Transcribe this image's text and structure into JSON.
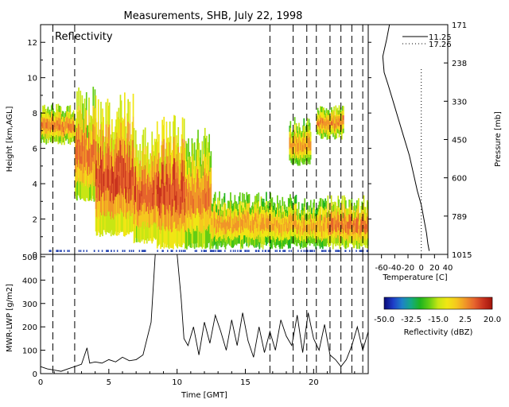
{
  "title": "Measurements, SHB, July 22, 1998",
  "colors": {
    "background": "#ffffff",
    "axes": "#000000",
    "ground_clutter": "#1f3fb0",
    "colormap": [
      "#0a0a78",
      "#1e3cc8",
      "#1e82c8",
      "#14aa82",
      "#1eb41e",
      "#64cd14",
      "#c8e614",
      "#f0e614",
      "#f5c81e",
      "#f09628",
      "#e6642d",
      "#c8321e",
      "#a0140a"
    ]
  },
  "chart_data": [
    {
      "id": "reflectivity",
      "type": "heatmap",
      "title": "Reflectivity",
      "xlabel": "",
      "ylabel": "Height [km,AGL]",
      "xlim": [
        0,
        24
      ],
      "ylim": [
        0,
        13
      ],
      "yticks": [
        0,
        2,
        4,
        6,
        8,
        10,
        12
      ],
      "grid": false,
      "dashed_time_markers": [
        0.9,
        2.5,
        16.8,
        18.5,
        19.5,
        20.2,
        21.2,
        22.0,
        22.8,
        23.6
      ],
      "echo_layers": [
        {
          "t_start": 0.0,
          "t_end": 2.5,
          "base_km": 6.2,
          "top_km": 8.6,
          "dbz": 8
        },
        {
          "t_start": 2.5,
          "t_end": 4.0,
          "base_km": 3.0,
          "top_km": 9.5,
          "dbz": 10
        },
        {
          "t_start": 4.0,
          "t_end": 6.8,
          "base_km": 1.0,
          "top_km": 9.2,
          "dbz": 14
        },
        {
          "t_start": 6.8,
          "t_end": 8.5,
          "base_km": 0.6,
          "top_km": 7.2,
          "dbz": 12
        },
        {
          "t_start": 8.5,
          "t_end": 10.6,
          "base_km": 0.3,
          "top_km": 8.0,
          "dbz": 15
        },
        {
          "t_start": 10.6,
          "t_end": 12.5,
          "base_km": 0.3,
          "top_km": 7.5,
          "dbz": 8
        },
        {
          "t_start": 12.5,
          "t_end": 16.8,
          "base_km": 0.3,
          "top_km": 3.6,
          "dbz": 5
        },
        {
          "t_start": 16.8,
          "t_end": 18.8,
          "base_km": 0.3,
          "top_km": 3.5,
          "dbz": 4
        },
        {
          "t_start": 18.2,
          "t_end": 19.8,
          "base_km": 5.0,
          "top_km": 7.8,
          "dbz": 6
        },
        {
          "t_start": 18.8,
          "t_end": 21.0,
          "base_km": 0.3,
          "top_km": 3.2,
          "dbz": 4
        },
        {
          "t_start": 20.2,
          "t_end": 22.2,
          "base_km": 6.5,
          "top_km": 8.5,
          "dbz": 7
        },
        {
          "t_start": 21.0,
          "t_end": 24.0,
          "base_km": 0.3,
          "top_km": 3.4,
          "dbz": 10
        }
      ]
    },
    {
      "id": "temperature-profile",
      "type": "line",
      "xlabel": "Temperature [C]",
      "ylabel": "Pressure [mb]",
      "xlim": [
        -80,
        40
      ],
      "xticks": [
        -60,
        -40,
        -20,
        0,
        20,
        40
      ],
      "ylim": [
        0,
        13
      ],
      "pressure_tick_labels": [
        "1015",
        "789",
        "600",
        "450",
        "330",
        "238",
        "171"
      ],
      "series": [
        {
          "name": "11.25",
          "style": "solid",
          "x": [
            12,
            10,
            8,
            4,
            0,
            -6,
            -12,
            -18,
            -26,
            -34,
            -42,
            -50,
            -56,
            -58,
            -52,
            -48
          ],
          "y": [
            0.2,
            0.6,
            1.2,
            2.0,
            2.8,
            3.6,
            4.6,
            5.6,
            6.6,
            7.6,
            8.6,
            9.6,
            10.3,
            11.2,
            12.2,
            13.0
          ]
        },
        {
          "name": "17.26",
          "style": "dotted",
          "x": [
            0,
            0
          ],
          "y": [
            0,
            10.5
          ]
        }
      ]
    },
    {
      "id": "mwr-lwp",
      "type": "line",
      "xlabel": "Time [GMT]",
      "ylabel": "MWR-LWP [g/m2]",
      "xlim": [
        0,
        24
      ],
      "xticks": [
        0,
        5,
        10,
        15,
        20
      ],
      "ylim": [
        0,
        510
      ],
      "yticks": [
        0,
        100,
        200,
        300,
        400,
        500
      ],
      "dashed_time_markers": [
        0.9,
        2.5,
        16.8,
        18.5,
        19.5,
        20.2,
        21.2,
        22.0,
        22.8,
        23.6
      ],
      "series": [
        {
          "name": "LWP",
          "x": [
            0,
            0.5,
            1.0,
            1.5,
            2.0,
            2.5,
            3.0,
            3.4,
            3.6,
            4.0,
            4.5,
            5.0,
            5.5,
            6.0,
            6.5,
            7.0,
            7.5,
            7.8,
            8.1,
            8.4,
            8.6,
            9.0,
            9.5,
            10.0,
            10.3,
            10.5,
            10.8,
            11.2,
            11.6,
            12.0,
            12.4,
            12.8,
            13.2,
            13.6,
            14.0,
            14.4,
            14.8,
            15.2,
            15.6,
            16.0,
            16.4,
            16.8,
            17.2,
            17.6,
            18.0,
            18.4,
            18.8,
            19.2,
            19.6,
            20.0,
            20.4,
            20.8,
            21.2,
            21.6,
            22.0,
            22.4,
            22.8,
            23.2,
            23.6,
            24.0
          ],
          "y": [
            30,
            20,
            15,
            10,
            20,
            30,
            40,
            110,
            45,
            50,
            45,
            60,
            50,
            70,
            55,
            60,
            80,
            150,
            220,
            510,
            510,
            510,
            510,
            510,
            320,
            150,
            120,
            200,
            80,
            220,
            130,
            250,
            180,
            100,
            230,
            120,
            260,
            140,
            70,
            200,
            90,
            180,
            100,
            230,
            160,
            120,
            250,
            90,
            260,
            150,
            100,
            210,
            80,
            60,
            30,
            60,
            120,
            200,
            100,
            180
          ]
        }
      ]
    },
    {
      "id": "reflectivity-colorbar",
      "type": "heatmap",
      "xlabel": "Reflectivity (dBZ)",
      "xlim": [
        -50,
        20
      ],
      "tick_labels": [
        "-50.0",
        "-32.5",
        "-15.0",
        "2.5",
        "20.0"
      ]
    }
  ]
}
